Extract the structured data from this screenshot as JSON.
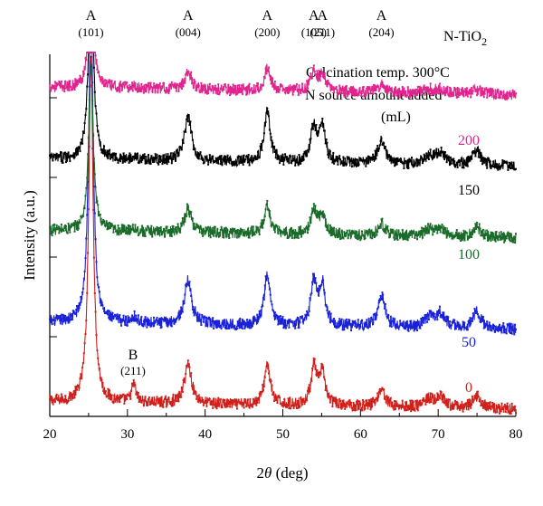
{
  "chart_data": {
    "type": "line",
    "material_label": "N-TiO",
    "material_subscript": "2",
    "annotation_line1": "Calcination temp. 300°C",
    "annotation_line2": "N source amount added",
    "annotation_line3": "(mL)",
    "xlabel_theta_prefix": "2",
    "xlabel_theta": "θ",
    "xlabel_unit": " (deg)",
    "ylabel": "Intensity (a.u.)",
    "xlim": [
      20,
      80
    ],
    "x_ticks": [
      "20",
      "30",
      "40",
      "50",
      "60",
      "70",
      "80"
    ],
    "y_ticks_shown": false,
    "peak_annotations": [
      {
        "phase": "A",
        "index": "(101)",
        "x": 25.3
      },
      {
        "phase": "A",
        "index": "(004)",
        "x": 37.8
      },
      {
        "phase": "A",
        "index": "(200)",
        "x": 48.0
      },
      {
        "phase": "A",
        "index": "(105)",
        "x": 54.0
      },
      {
        "phase": "A",
        "index": "(211)",
        "x": 55.1
      },
      {
        "phase": "A",
        "index": "(204)",
        "x": 62.7
      }
    ],
    "extra_annotation": {
      "phase": "B",
      "index": "(211)",
      "x": 30.8
    },
    "peaks": [
      25.3,
      30.8,
      37.8,
      48.0,
      54.0,
      55.1,
      62.7,
      68.8,
      70.3,
      75.0
    ],
    "series": [
      {
        "name": "0",
        "color": "#d0201c",
        "baseline": 0.0,
        "heights": [
          4.3,
          0.22,
          0.5,
          0.52,
          0.48,
          0.4,
          0.22,
          0.1,
          0.12,
          0.15
        ]
      },
      {
        "name": "50",
        "color": "#1a22d8",
        "baseline": 1.0,
        "heights": [
          4.0,
          0.08,
          0.55,
          0.65,
          0.55,
          0.5,
          0.4,
          0.12,
          0.18,
          0.22
        ]
      },
      {
        "name": "100",
        "color": "#1a6b2a",
        "baseline": 2.15,
        "heights": [
          2.1,
          0.05,
          0.3,
          0.35,
          0.3,
          0.25,
          0.15,
          0.08,
          0.1,
          0.12
        ]
      },
      {
        "name": "150",
        "color": "#000000",
        "baseline": 3.05,
        "heights": [
          2.6,
          0.05,
          0.55,
          0.65,
          0.45,
          0.45,
          0.3,
          0.1,
          0.15,
          0.18
        ]
      },
      {
        "name": "200",
        "color": "#e0258e",
        "baseline": 3.95,
        "heights": [
          1.6,
          0.03,
          0.22,
          0.28,
          0.25,
          0.2,
          0.1,
          0.05,
          0.05,
          0.05
        ]
      }
    ]
  }
}
